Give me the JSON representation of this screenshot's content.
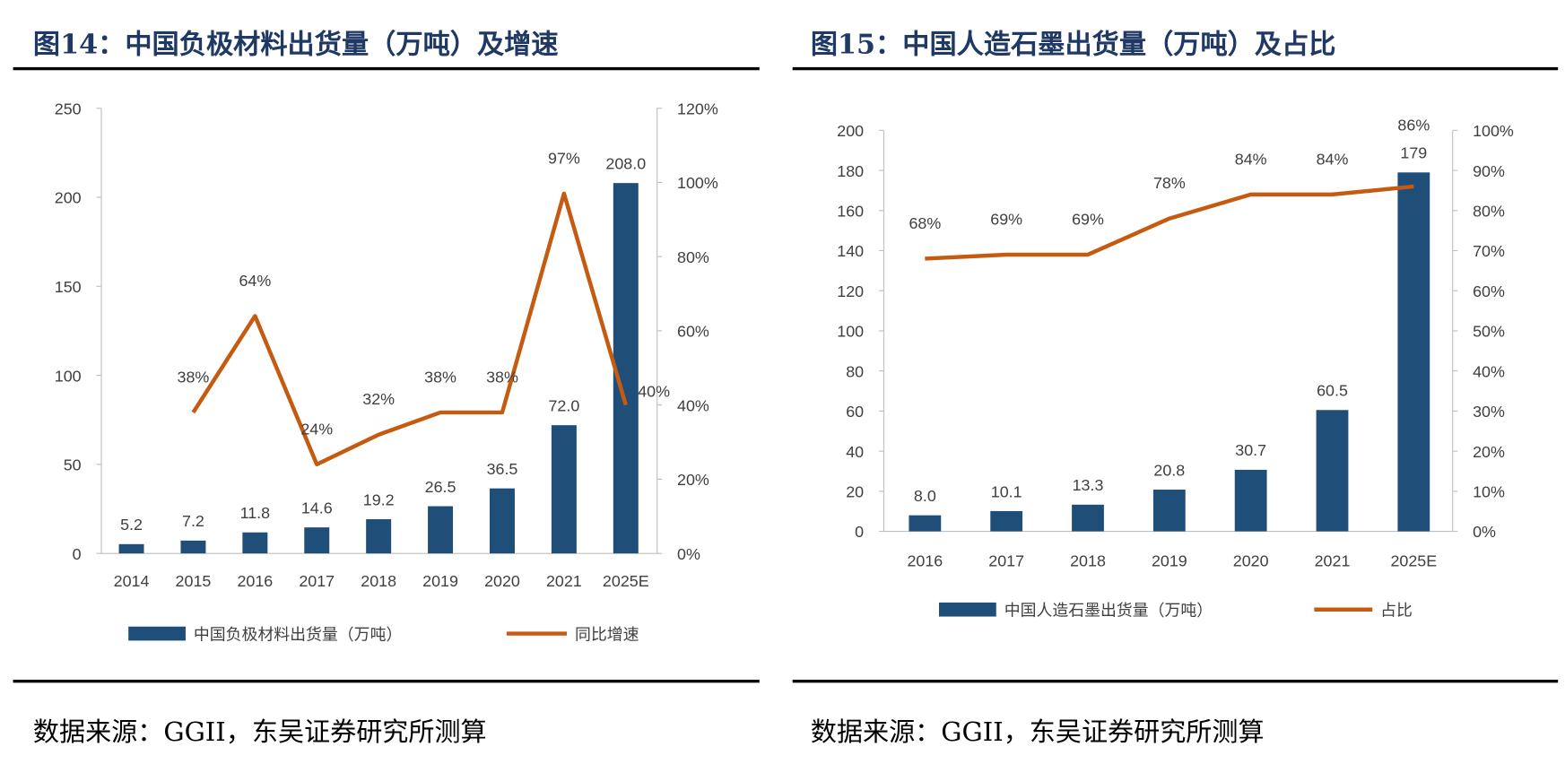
{
  "colors": {
    "bar": "#1f4e79",
    "line": "#c55a11",
    "title": "#1f3864"
  },
  "chart_data": [
    {
      "type": "bar+line",
      "title": "图14：中国负极材料出货量（万吨）及增速",
      "source": "数据来源：GGII，东吴证券研究所测算",
      "categories": [
        "2014",
        "2015",
        "2016",
        "2017",
        "2018",
        "2019",
        "2020",
        "2021",
        "2025E"
      ],
      "ylim_left": [
        0,
        250
      ],
      "yticks_left": [
        "0",
        "50",
        "100",
        "150",
        "200",
        "250"
      ],
      "ylim_right": [
        0,
        120
      ],
      "yticks_right": [
        "0%",
        "20%",
        "40%",
        "60%",
        "80%",
        "100%",
        "120%"
      ],
      "series": [
        {
          "name": "中国负极材料出货量（万吨）",
          "type": "bar",
          "axis": "left",
          "values": [
            5.2,
            7.2,
            11.8,
            14.6,
            19.2,
            26.5,
            36.5,
            72.0,
            208.0
          ],
          "labels": [
            "5.2",
            "7.2",
            "11.8",
            "14.6",
            "19.2",
            "26.5",
            "36.5",
            "72.0",
            "208.0"
          ]
        },
        {
          "name": "同比增速",
          "type": "line",
          "axis": "right",
          "values": [
            null,
            38,
            64,
            24,
            32,
            38,
            38,
            97,
            40
          ],
          "labels": [
            null,
            "38%",
            "64%",
            "24%",
            "32%",
            "38%",
            "38%",
            "97%",
            "40%"
          ]
        }
      ],
      "legend": "bottom",
      "grid": false
    },
    {
      "type": "bar+line",
      "title": "图15：中国人造石墨出货量（万吨）及占比",
      "source": "数据来源：GGII，东吴证券研究所测算",
      "categories": [
        "2016",
        "2017",
        "2018",
        "2019",
        "2020",
        "2021",
        "2025E"
      ],
      "ylim_left": [
        0,
        200
      ],
      "yticks_left": [
        "0",
        "20",
        "40",
        "60",
        "80",
        "100",
        "120",
        "140",
        "160",
        "180",
        "200"
      ],
      "ylim_right": [
        0,
        100
      ],
      "yticks_right": [
        "0%",
        "10%",
        "20%",
        "30%",
        "40%",
        "50%",
        "60%",
        "70%",
        "80%",
        "90%",
        "100%"
      ],
      "series": [
        {
          "name": "中国人造石墨出货量（万吨）",
          "type": "bar",
          "axis": "left",
          "values": [
            8.0,
            10.1,
            13.3,
            20.8,
            30.7,
            60.5,
            179
          ],
          "labels": [
            "8.0",
            "10.1",
            "13.3",
            "20.8",
            "30.7",
            "60.5",
            "179"
          ]
        },
        {
          "name": "占比",
          "type": "line",
          "axis": "right",
          "values": [
            68,
            69,
            69,
            78,
            84,
            84,
            86
          ],
          "labels": [
            "68%",
            "69%",
            "69%",
            "78%",
            "84%",
            "84%",
            "86%"
          ]
        }
      ],
      "legend": "bottom",
      "grid": false
    }
  ]
}
